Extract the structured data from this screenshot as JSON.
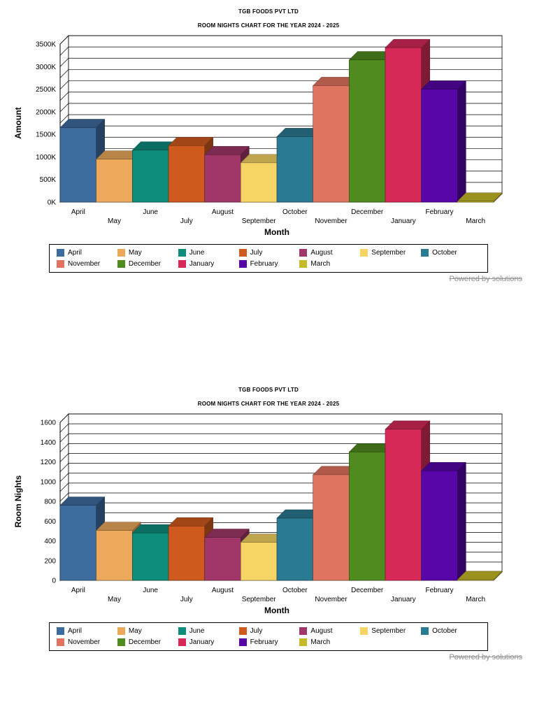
{
  "watermark": "Powered by solutions",
  "chart_data": [
    {
      "type": "bar",
      "style": "3d",
      "title": "TGB FOODS PVT LTD",
      "subtitle": "ROOM NIGHTS CHART FOR THE YEAR 2024 - 2025",
      "xlabel": "Month",
      "ylabel": "Amount",
      "legend_position": "bottom",
      "grid": true,
      "categories": [
        "April",
        "May",
        "June",
        "July",
        "August",
        "September",
        "October",
        "November",
        "December",
        "January",
        "February",
        "March"
      ],
      "values": [
        1650,
        950,
        1150,
        1250,
        1050,
        870,
        1450,
        2580,
        3150,
        3420,
        2500,
        20
      ],
      "ylim": [
        0,
        3500
      ],
      "ytick_step": 500,
      "grid_step": 250,
      "ytick_suffix": "K",
      "ytick_labels": [
        "0K",
        "500K",
        "1000K",
        "1500K",
        "2000K",
        "2500K",
        "3000K",
        "3500K"
      ],
      "colors": [
        "#3D6C9E",
        "#EDA95B",
        "#0E8C7C",
        "#D05A1E",
        "#A13768",
        "#F6D465",
        "#2B7A93",
        "#E07460",
        "#4F8B1F",
        "#D62958",
        "#5706A8",
        "#C7BA28"
      ]
    },
    {
      "type": "bar",
      "style": "3d",
      "title": "TGB FOODS PVT LTD",
      "subtitle": "ROOM NIGHTS CHART FOR THE YEAR 2024 - 2025",
      "xlabel": "Month",
      "ylabel": "Room Nights",
      "legend_position": "bottom",
      "grid": true,
      "categories": [
        "April",
        "May",
        "June",
        "July",
        "August",
        "September",
        "October",
        "November",
        "December",
        "January",
        "February",
        "March"
      ],
      "values": [
        760,
        505,
        480,
        550,
        435,
        385,
        630,
        1070,
        1300,
        1530,
        1110,
        8
      ],
      "ylim": [
        0,
        1600
      ],
      "ytick_step": 200,
      "grid_step": 100,
      "ytick_suffix": "",
      "ytick_labels": [
        "0",
        "200",
        "400",
        "600",
        "800",
        "1000",
        "1200",
        "1400",
        "1600"
      ],
      "colors": [
        "#3D6C9E",
        "#EDA95B",
        "#0E8C7C",
        "#D05A1E",
        "#A13768",
        "#F6D465",
        "#2B7A93",
        "#E07460",
        "#4F8B1F",
        "#D62958",
        "#5706A8",
        "#C7BA28"
      ]
    }
  ]
}
